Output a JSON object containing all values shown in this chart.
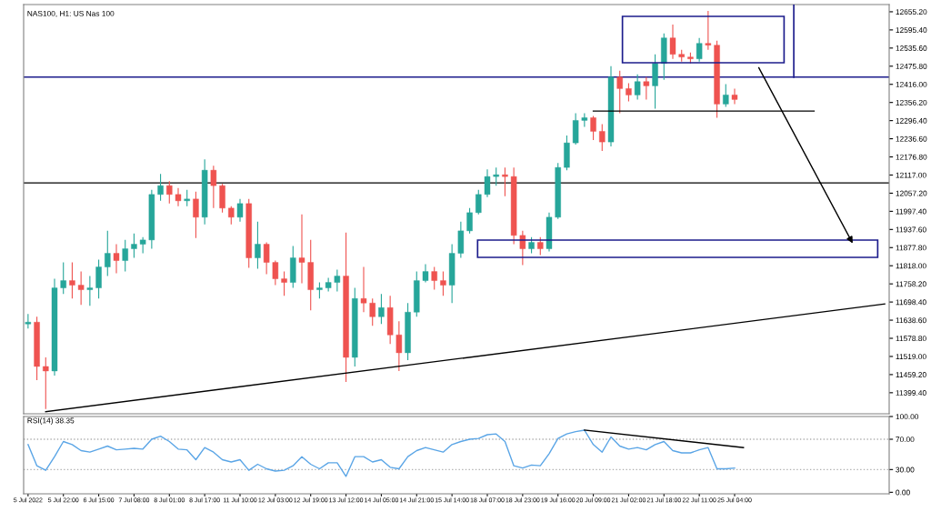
{
  "chart_data": [
    {
      "type": "candlestick",
      "title": "NAS100, H1: US Nas 100",
      "categories": [
        null,
        null,
        null,
        null,
        null,
        null,
        null,
        null,
        null,
        null,
        null,
        null,
        null,
        null,
        null,
        null,
        null,
        null,
        null,
        null,
        null,
        null,
        null,
        null,
        null,
        null,
        null,
        null,
        null,
        null,
        null,
        null,
        null,
        null,
        null,
        null,
        null,
        null,
        null,
        null,
        null,
        null,
        null,
        null,
        null,
        null,
        null,
        null,
        null,
        null,
        null,
        null,
        null,
        null,
        null,
        null,
        null,
        null,
        null,
        null,
        null,
        null,
        null,
        null,
        null,
        null,
        null,
        null,
        null,
        null,
        null,
        null,
        null,
        null,
        null,
        null,
        null,
        null,
        null,
        null,
        null,
        null,
        null,
        null,
        null,
        null,
        null,
        null,
        null,
        null,
        null,
        null,
        null,
        null,
        null,
        null,
        null,
        null
      ],
      "ohlc": [
        [
          11626,
          11659,
          11611,
          11632
        ],
        [
          11632,
          11650,
          11441,
          11486
        ],
        [
          11486,
          11516,
          11346,
          11471
        ],
        [
          11471,
          11775,
          11456,
          11745
        ],
        [
          11745,
          11829,
          11725,
          11769
        ],
        [
          11769,
          11829,
          11710,
          11754
        ],
        [
          11754,
          11799,
          11689,
          11739
        ],
        [
          11739,
          11784,
          11686,
          11745
        ],
        [
          11745,
          11838,
          11710,
          11814
        ],
        [
          11814,
          11933,
          11784,
          11859
        ],
        [
          11859,
          11889,
          11793,
          11835
        ],
        [
          11835,
          11903,
          11799,
          11874
        ],
        [
          11874,
          11924,
          11844,
          11889
        ],
        [
          11889,
          11912,
          11859,
          11903
        ],
        [
          11903,
          12068,
          11874,
          12053
        ],
        [
          12053,
          12121,
          12032,
          12082
        ],
        [
          12082,
          12097,
          12023,
          12053
        ],
        [
          12053,
          12074,
          12014,
          12032
        ],
        [
          12032,
          12068,
          12014,
          12038
        ],
        [
          12038,
          12062,
          11909,
          11978
        ],
        [
          11978,
          12169,
          11954,
          12133
        ],
        [
          12133,
          12148,
          12008,
          12082
        ],
        [
          12082,
          12088,
          11993,
          12008
        ],
        [
          12008,
          12014,
          11954,
          11978
        ],
        [
          11978,
          12038,
          11963,
          12023
        ],
        [
          12023,
          12038,
          11811,
          11844
        ],
        [
          11844,
          11963,
          11808,
          11889
        ],
        [
          11889,
          11895,
          11790,
          11829
        ],
        [
          11829,
          11835,
          11754,
          11775
        ],
        [
          11775,
          11799,
          11719,
          11763
        ],
        [
          11763,
          11883,
          11745,
          11844
        ],
        [
          11844,
          11987,
          11760,
          11829
        ],
        [
          11829,
          11903,
          11671,
          11739
        ],
        [
          11739,
          11763,
          11710,
          11745
        ],
        [
          11745,
          11778,
          11733,
          11763
        ],
        [
          11763,
          11805,
          11733,
          11784
        ],
        [
          11784,
          11927,
          11435,
          11516
        ],
        [
          11516,
          11745,
          11486,
          11710
        ],
        [
          11710,
          11814,
          11665,
          11695
        ],
        [
          11695,
          11710,
          11620,
          11650
        ],
        [
          11650,
          11725,
          11626,
          11680
        ],
        [
          11680,
          11719,
          11560,
          11590
        ],
        [
          11590,
          11635,
          11471,
          11531
        ],
        [
          11531,
          11695,
          11507,
          11665
        ],
        [
          11665,
          11799,
          11650,
          11769
        ],
        [
          11769,
          11823,
          11763,
          11799
        ],
        [
          11799,
          11814,
          11739,
          11769
        ],
        [
          11769,
          11799,
          11719,
          11754
        ],
        [
          11754,
          11889,
          11695,
          11859
        ],
        [
          11859,
          11963,
          11844,
          11933
        ],
        [
          11933,
          12008,
          11924,
          11993
        ],
        [
          11993,
          12068,
          11987,
          12053
        ],
        [
          12053,
          12136,
          12044,
          12112
        ],
        [
          12112,
          12142,
          12082,
          12118
        ],
        [
          12118,
          12142,
          12047,
          12112
        ],
        [
          12112,
          12142,
          11889,
          11918
        ],
        [
          11918,
          11933,
          11820,
          11874
        ],
        [
          11874,
          11912,
          11859,
          11895
        ],
        [
          11895,
          11912,
          11853,
          11874
        ],
        [
          11874,
          11993,
          11865,
          11978
        ],
        [
          11978,
          12157,
          11972,
          12142
        ],
        [
          12142,
          12247,
          12133,
          12223
        ],
        [
          12223,
          12321,
          12217,
          12297
        ],
        [
          12297,
          12321,
          12276,
          12306
        ],
        [
          12306,
          12312,
          12232,
          12261
        ],
        [
          12261,
          12285,
          12196,
          12226
        ],
        [
          12226,
          12476,
          12211,
          12440
        ],
        [
          12440,
          12461,
          12321,
          12402
        ],
        [
          12402,
          12420,
          12360,
          12381
        ],
        [
          12381,
          12449,
          12366,
          12425
        ],
        [
          12425,
          12440,
          12366,
          12411
        ],
        [
          12411,
          12515,
          12336,
          12485
        ],
        [
          12485,
          12584,
          12431,
          12569
        ],
        [
          12569,
          12613,
          12500,
          12515
        ],
        [
          12515,
          12530,
          12491,
          12506
        ],
        [
          12506,
          12521,
          12485,
          12500
        ],
        [
          12500,
          12569,
          12491,
          12551
        ],
        [
          12551,
          12658,
          12530,
          12545
        ],
        [
          12545,
          12560,
          12306,
          12351
        ],
        [
          12351,
          12417,
          12342,
          12381
        ],
        [
          12381,
          12402,
          12351,
          12366
        ],
        null,
        null,
        null,
        null,
        null,
        null,
        null,
        null,
        null,
        null,
        null,
        null,
        null,
        null,
        null,
        null,
        null
      ],
      "colors": [
        "#26a69a",
        "#ef5350",
        "#ef5350",
        "#26a69a",
        "#26a69a",
        "#ef5350",
        "#ef5350",
        "#26a69a",
        "#26a69a",
        "#26a69a",
        "#ef5350",
        "#26a69a",
        "#26a69a",
        "#26a69a",
        "#26a69a",
        "#26a69a",
        "#ef5350",
        "#ef5350",
        "#26a69a",
        "#ef5350",
        "#26a69a",
        "#ef5350",
        "#ef5350",
        "#ef5350",
        "#26a69a",
        "#ef5350",
        "#26a69a",
        "#ef5350",
        "#ef5350",
        "#ef5350",
        "#26a69a",
        "#ef5350",
        "#ef5350",
        "#26a69a",
        "#26a69a",
        "#26a69a",
        "#ef5350",
        "#26a69a",
        "#ef5350",
        "#ef5350",
        "#26a69a",
        "#ef5350",
        "#ef5350",
        "#26a69a",
        "#26a69a",
        "#26a69a",
        "#ef5350",
        "#ef5350",
        "#26a69a",
        "#26a69a",
        "#26a69a",
        "#26a69a",
        "#26a69a",
        "#26a69a",
        "#ef5350",
        "#ef5350",
        "#ef5350",
        "#26a69a",
        "#ef5350",
        "#26a69a",
        "#26a69a",
        "#26a69a",
        "#26a69a",
        "#26a69a",
        "#ef5350",
        "#ef5350",
        "#26a69a",
        "#ef5350",
        "#ef5350",
        "#26a69a",
        "#ef5350",
        "#26a69a",
        "#26a69a",
        "#ef5350",
        "#ef5350",
        "#ef5350",
        "#26a69a",
        "#ef5350",
        "#ef5350",
        "#26a69a",
        "#ef5350",
        null,
        null,
        null,
        null,
        null,
        null,
        null,
        null,
        null,
        null,
        null,
        null,
        null,
        null,
        null,
        null,
        null
      ],
      "series": [
        {
          "type": "line",
          "color": "#000000",
          "values": [
            null,
            null,
            11337,
            null,
            null,
            null,
            null,
            null,
            null,
            null,
            null,
            null,
            null,
            null,
            null,
            null,
            null,
            null,
            null,
            null,
            null,
            null,
            null,
            null,
            null,
            null,
            null,
            null,
            null,
            null,
            null,
            null,
            null,
            null,
            null,
            null,
            null,
            null,
            null,
            null,
            null,
            null,
            null,
            null,
            null,
            null,
            null,
            null,
            null,
            null,
            null,
            null,
            null,
            null,
            null,
            null,
            null,
            null,
            null,
            null,
            null,
            null,
            null,
            null,
            null,
            null,
            null,
            null,
            null,
            null,
            null,
            null,
            null,
            null,
            null,
            null,
            null,
            null,
            null,
            null,
            null,
            null,
            null,
            null,
            null,
            null,
            null,
            null,
            null,
            null,
            null,
            null,
            null,
            null,
            null,
            null,
            null,
            11692
          ]
        },
        {
          "type": "line",
          "color": "#000000",
          "values": [
            null,
            null,
            null,
            null,
            null,
            null,
            null,
            null,
            null,
            null,
            null,
            null,
            null,
            null,
            null,
            null,
            null,
            null,
            null,
            null,
            null,
            null,
            null,
            null,
            null,
            null,
            null,
            null,
            null,
            null,
            null,
            null,
            null,
            null,
            null,
            null,
            null,
            null,
            null,
            null,
            null,
            null,
            null,
            null,
            null,
            null,
            null,
            null,
            null,
            null,
            null,
            null,
            null,
            null,
            null,
            null,
            null,
            null,
            null,
            null,
            null,
            null,
            null,
            null,
            12328,
            null,
            null,
            null,
            null,
            null,
            null,
            null,
            null,
            null,
            null,
            null,
            null,
            null,
            null,
            null,
            null,
            null,
            null,
            null,
            null,
            null,
            null,
            null,
            null,
            12328,
            null,
            null,
            null,
            null,
            null,
            null,
            null,
            null
          ]
        }
      ],
      "ref_lines": [
        {
          "axis": "y",
          "value": 12440,
          "color": "#1c1c8c",
          "line_style": "solid"
        },
        {
          "axis": "y",
          "value": 12091,
          "color": "#000000",
          "line_style": "solid"
        }
      ],
      "ylim": [
        11330,
        12679
      ],
      "yticks": [
        {
          "value": 12655.2,
          "label": "12655.20"
        },
        {
          "value": 12595.4,
          "label": "12595.40"
        },
        {
          "value": 12535.6,
          "label": "12535.60"
        },
        {
          "value": 12475.8,
          "label": "12475.80"
        },
        {
          "value": 12416.0,
          "label": "12416.00"
        },
        {
          "value": 12356.2,
          "label": "12356.20"
        },
        {
          "value": 12296.4,
          "label": "12296.40"
        },
        {
          "value": 12236.6,
          "label": "12236.60"
        },
        {
          "value": 12176.8,
          "label": "12176.80"
        },
        {
          "value": 12117.0,
          "label": "12117.00"
        },
        {
          "value": 12057.2,
          "label": "12057.20"
        },
        {
          "value": 11997.4,
          "label": "11997.40"
        },
        {
          "value": 11937.6,
          "label": "11937.60"
        },
        {
          "value": 11877.8,
          "label": "11877.80"
        },
        {
          "value": 11818.0,
          "label": "11818.00"
        },
        {
          "value": 11758.2,
          "label": "11758.20"
        },
        {
          "value": 11698.4,
          "label": "11698.40"
        },
        {
          "value": 11638.6,
          "label": "11638.60"
        },
        {
          "value": 11578.8,
          "label": "11578.80"
        },
        {
          "value": 11519.0,
          "label": "11519.00"
        },
        {
          "value": 11459.2,
          "label": "11459.20"
        },
        {
          "value": 11399.4,
          "label": "11399.40"
        }
      ],
      "tick_labels": "y"
    },
    {
      "type": "line",
      "title": "RSI(14) 38.35",
      "categories": [
        "5 Jul 2022",
        null,
        null,
        null,
        "5 Jul 22:00",
        null,
        null,
        null,
        "6 Jul 15:00",
        null,
        null,
        null,
        "7 Jul 08:00",
        null,
        null,
        null,
        "8 Jul 01:00",
        null,
        null,
        null,
        "8 Jul 17:00",
        null,
        null,
        null,
        "11 Jul 10:00",
        null,
        null,
        null,
        "12 Jul 03:00",
        null,
        null,
        null,
        "12 Jul 19:00",
        null,
        null,
        null,
        "13 Jul 12:00",
        null,
        null,
        null,
        "14 Jul 05:00",
        null,
        null,
        null,
        "14 Jul 21:00",
        null,
        null,
        null,
        "15 Jul 14:00",
        null,
        null,
        null,
        "18 Jul 07:00",
        null,
        null,
        null,
        "18 Jul 23:00",
        null,
        null,
        null,
        "19 Jul 16:00",
        null,
        null,
        null,
        "20 Jul 09:00",
        null,
        null,
        null,
        "21 Jul 02:00",
        null,
        null,
        null,
        "21 Jul 18:00",
        null,
        null,
        null,
        "22 Jul 11:00",
        null,
        null,
        null,
        "25 Jul 04:00",
        null,
        null,
        null,
        null,
        null,
        null,
        null,
        null,
        null,
        null,
        null,
        null,
        null,
        null,
        null,
        null,
        null
      ],
      "series": [
        {
          "color": "#5aa5e6",
          "values": [
            63,
            35,
            29,
            47,
            67,
            63,
            55,
            53,
            57,
            61,
            56,
            57,
            58,
            57,
            70,
            74,
            67,
            57,
            56,
            43,
            59,
            53,
            43,
            40,
            43,
            29,
            37,
            31,
            28,
            29,
            35,
            47,
            37,
            31,
            39,
            39,
            21,
            47,
            47,
            40,
            43,
            33,
            31,
            47,
            55,
            59,
            56,
            53,
            63,
            67,
            70,
            71,
            76,
            77,
            67,
            35,
            32,
            36,
            35,
            51,
            71,
            77,
            80,
            82,
            63,
            53,
            73,
            61,
            57,
            59,
            56,
            63,
            67,
            55,
            52,
            52,
            56,
            59,
            31,
            31,
            32,
            null,
            null,
            null,
            null,
            null,
            null,
            null,
            null,
            null,
            null,
            null,
            null,
            null,
            null,
            null,
            null,
            null
          ]
        },
        {
          "type": "line",
          "color": "#000000",
          "values": [
            null,
            null,
            null,
            null,
            null,
            null,
            null,
            null,
            null,
            null,
            null,
            null,
            null,
            null,
            null,
            null,
            null,
            null,
            null,
            null,
            null,
            null,
            null,
            null,
            null,
            null,
            null,
            null,
            null,
            null,
            null,
            null,
            null,
            null,
            null,
            null,
            null,
            null,
            null,
            null,
            null,
            null,
            null,
            null,
            null,
            null,
            null,
            null,
            null,
            null,
            null,
            null,
            null,
            null,
            null,
            null,
            null,
            null,
            null,
            null,
            null,
            null,
            null,
            82,
            null,
            null,
            null,
            null,
            null,
            null,
            null,
            null,
            null,
            null,
            null,
            null,
            null,
            null,
            null,
            null,
            null,
            59,
            null,
            null,
            null,
            null,
            null,
            null,
            null,
            null,
            null,
            null,
            null,
            null,
            null,
            null,
            null,
            null
          ]
        }
      ],
      "ref_lines": [
        {
          "axis": "y",
          "value": 70,
          "color": "#b0b0b0",
          "line_style": "dotted"
        },
        {
          "axis": "y",
          "value": 30,
          "color": "#b0b0b0",
          "line_style": "dotted"
        }
      ],
      "ylim": [
        -2,
        100
      ],
      "yticks": [
        {
          "value": 100,
          "label": "100.00"
        },
        {
          "value": 70,
          "label": "70.00"
        },
        {
          "value": 30,
          "label": "30.00"
        },
        {
          "value": 0,
          "label": "0.00"
        }
      ]
    }
  ]
}
